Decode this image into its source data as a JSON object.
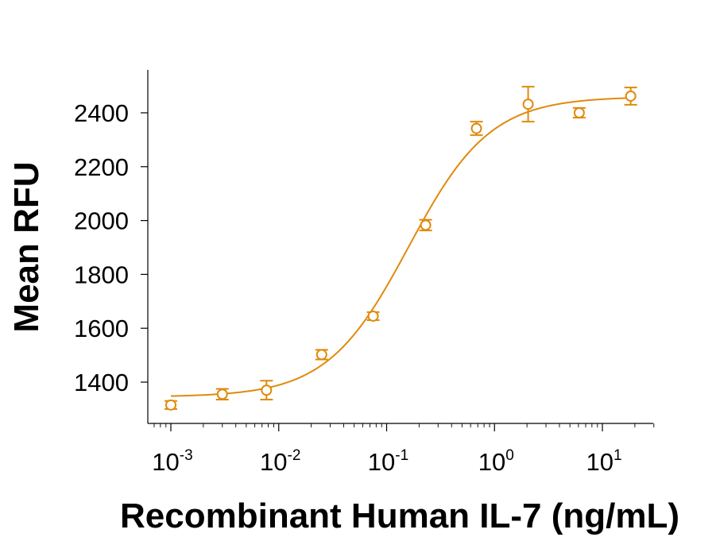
{
  "chart_data": {
    "type": "scatter",
    "xlabel": "Recombinant Human IL-7 (ng/mL)",
    "ylabel": "Mean RFU",
    "x_scale": "log",
    "xlim": [
      0.0007,
      30
    ],
    "ylim": [
      1250,
      2530
    ],
    "y_ticks": [
      1400,
      1600,
      1800,
      2000,
      2200,
      2400
    ],
    "x_ticks": [
      {
        "value": 0.001,
        "base": "10",
        "exp": "-3"
      },
      {
        "value": 0.01,
        "base": "10",
        "exp": "-2"
      },
      {
        "value": 0.1,
        "base": "10",
        "exp": "-1"
      },
      {
        "value": 1,
        "base": "10",
        "exp": "0"
      },
      {
        "value": 10,
        "base": "10",
        "exp": "1"
      }
    ],
    "grid": false,
    "color": "#E08A0B",
    "series": [
      {
        "points": [
          {
            "x": 0.001,
            "y": 1315,
            "err": 15
          },
          {
            "x": 0.003,
            "y": 1355,
            "err": 20
          },
          {
            "x": 0.0077,
            "y": 1370,
            "err": 35
          },
          {
            "x": 0.025,
            "y": 1502,
            "err": 18
          },
          {
            "x": 0.075,
            "y": 1645,
            "err": 15
          },
          {
            "x": 0.23,
            "y": 1983,
            "err": 20
          },
          {
            "x": 0.68,
            "y": 2342,
            "err": 25
          },
          {
            "x": 2.05,
            "y": 2432,
            "err": 65
          },
          {
            "x": 6.1,
            "y": 2400,
            "err": 18
          },
          {
            "x": 18.3,
            "y": 2462,
            "err": 32
          }
        ],
        "fit": {
          "model": "4PL",
          "bottom": 1345,
          "top": 2460,
          "ec50": 0.16,
          "hill": 1.15
        }
      }
    ]
  }
}
